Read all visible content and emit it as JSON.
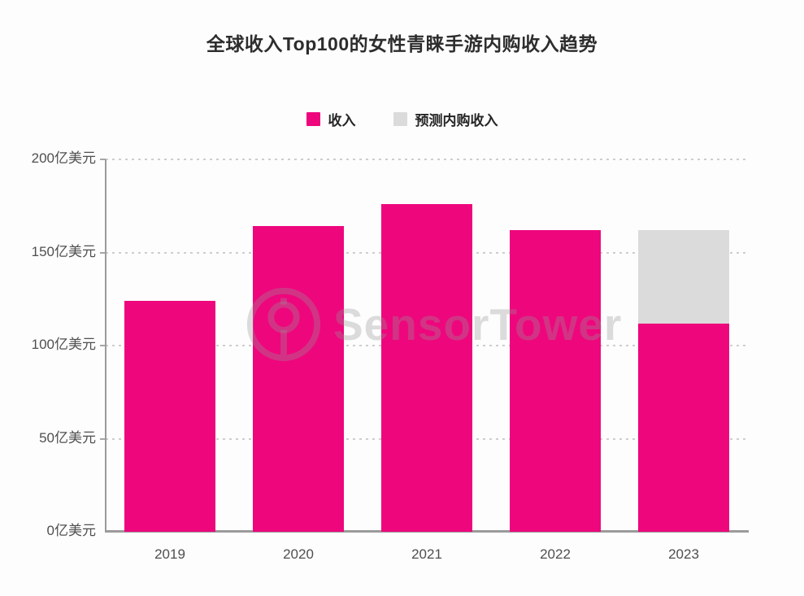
{
  "watermark": {
    "text": "SensorTower"
  },
  "chart_data": {
    "type": "bar",
    "stacked": true,
    "title": "全球收入Top100的女性青睐手游内购收入趋势",
    "categories": [
      "2019",
      "2020",
      "2021",
      "2022",
      "2023"
    ],
    "series": [
      {
        "name": "收入",
        "color": "#EE067D",
        "values": [
          124,
          164,
          176,
          162,
          112
        ]
      },
      {
        "name": "预测内购收入",
        "color": "#DBDBDB",
        "values": [
          0,
          0,
          0,
          0,
          50
        ]
      }
    ],
    "unit": "亿美元",
    "ylim": [
      0,
      200
    ],
    "y_ticks": [
      0,
      50,
      100,
      150,
      200
    ],
    "y_tick_labels": [
      "0亿美元",
      "50亿美元",
      "100亿美元",
      "150亿美元",
      "200亿美元"
    ],
    "xlabel": "",
    "ylabel": "",
    "grid": "horizontal-dashed",
    "legend_position": "top-center"
  }
}
